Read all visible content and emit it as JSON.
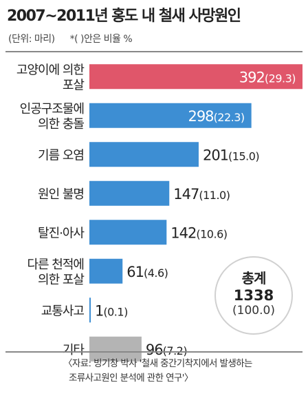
{
  "title": "2007~2011년 홍도 내 철새 사망원인",
  "units": "(단위: 마리)",
  "ratio_note": "*( )안은 비율 %",
  "total": {
    "label": "총계",
    "value": "1338",
    "pct": "(100.0)"
  },
  "source": {
    "line1": "〈자료: 빙기창 박사 '철새 중간기착지에서 발생하는",
    "line2": "조류사고원인 분석에 관한 연구'〉"
  },
  "colors": {
    "highlight": "#e0566a",
    "primary": "#3d8ed3",
    "other": "#b4b4b4"
  },
  "chart_data": {
    "type": "bar",
    "orientation": "horizontal",
    "title": "2007~2011년 홍도 내 철새 사망원인",
    "unit": "마리",
    "categories": [
      [
        "고양이에 의한",
        "포살"
      ],
      [
        "인공구조물에",
        "의한 충돌"
      ],
      [
        "기름 오염"
      ],
      [
        "원인 불명"
      ],
      [
        "탈진·아사"
      ],
      [
        "다른 천적에",
        "의한 포살"
      ],
      [
        "교통사고"
      ],
      [
        "기타"
      ]
    ],
    "values": [
      392,
      298,
      201,
      147,
      142,
      61,
      1,
      96
    ],
    "percents": [
      "(29.3)",
      "(22.3)",
      "(15.0)",
      "(11.0)",
      "(10.6)",
      "(4.6)",
      "(0.1)",
      "(7.2)"
    ],
    "bar_styles": [
      "highlight",
      "primary",
      "primary",
      "primary",
      "primary",
      "primary",
      "primary",
      "other"
    ],
    "grid": false,
    "legend": "none"
  }
}
